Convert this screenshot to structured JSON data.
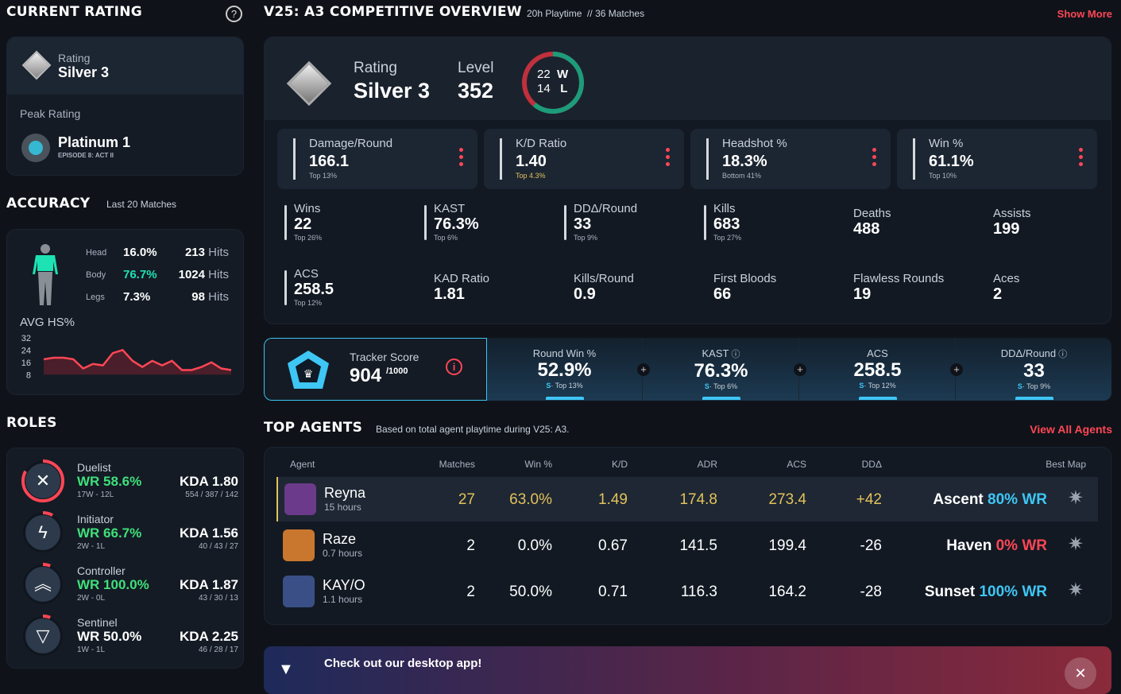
{
  "left": {
    "current_rating_title": "CURRENT RATING",
    "rating_label": "Rating",
    "rating_value": "Silver 3",
    "peak_label": "Peak Rating",
    "peak_value": "Platinum 1",
    "peak_episode": "EPISODE 8: ACT II",
    "accuracy_title": "ACCURACY",
    "accuracy_sub": "Last 20 Matches",
    "accuracy": [
      {
        "part": "Head",
        "pct": "16.0%",
        "hits": "213",
        "unit": "Hits"
      },
      {
        "part": "Body",
        "pct": "76.7%",
        "hits": "1024",
        "unit": "Hits"
      },
      {
        "part": "Legs",
        "pct": "7.3%",
        "hits": "98",
        "unit": "Hits"
      }
    ],
    "avg_hs_label": "AVG HS%",
    "roles_title": "ROLES",
    "roles": [
      {
        "name": "Duelist",
        "wr": "WR 58.6%",
        "wl": "17W - 12L",
        "kda": "KDA 1.80",
        "kdas": "554 / 387 / 142",
        "icon": "duelist-icon",
        "share": 0.83,
        "glyph": "✕"
      },
      {
        "name": "Initiator",
        "wr": "WR 66.7%",
        "wl": "2W - 1L",
        "kda": "KDA 1.56",
        "kdas": "40 / 43 / 27",
        "icon": "initiator-icon",
        "share": 0.08,
        "glyph": "ϟ"
      },
      {
        "name": "Controller",
        "wr": "WR 100.0%",
        "wl": "2W - 0L",
        "kda": "KDA 1.87",
        "kdas": "43 / 30 / 13",
        "icon": "controller-icon",
        "share": 0.06,
        "glyph": "︽"
      },
      {
        "name": "Sentinel",
        "wr": "WR 50.0%",
        "wl": "1W - 1L",
        "kda": "KDA 2.25",
        "kdas": "46 / 28 / 17",
        "icon": "sentinel-icon",
        "share": 0.06,
        "glyph": "▽"
      }
    ]
  },
  "hs_chart": {
    "y_ticks": [
      "32",
      "24",
      "16",
      "8"
    ],
    "ylim": [
      4,
      34
    ],
    "values": [
      18,
      19,
      19,
      18,
      12,
      15,
      14,
      22,
      24,
      17,
      13,
      17,
      14,
      17,
      11,
      11,
      13,
      16,
      12,
      11
    ]
  },
  "overview": {
    "title": "V25: A3 COMPETITIVE OVERVIEW",
    "playtime": "20h Playtime",
    "separator": "//",
    "matches": "36 Matches",
    "show_more": "Show More",
    "rating_label": "Rating",
    "rating_value": "Silver 3",
    "level_label": "Level",
    "level_value": "352",
    "wins": "22",
    "losses": "14",
    "w_label": "W",
    "l_label": "L",
    "tiles": [
      {
        "label": "Damage/Round",
        "value": "166.1",
        "sub": "Top 13%"
      },
      {
        "label": "K/D Ratio",
        "value": "1.40",
        "sub": "Top 4.3%"
      },
      {
        "label": "Headshot %",
        "value": "18.3%",
        "sub": "Bottom 41%"
      },
      {
        "label": "Win %",
        "value": "61.1%",
        "sub": "Top 10%"
      }
    ],
    "stats": [
      {
        "label": "Wins",
        "value": "22",
        "sub": "Top 26%"
      },
      {
        "label": "KAST",
        "value": "76.3%",
        "sub": "Top 6%"
      },
      {
        "label": "DDΔ/Round",
        "value": "33",
        "sub": "Top 9%"
      },
      {
        "label": "Kills",
        "value": "683",
        "sub": "Top 27%"
      },
      {
        "label": "Deaths",
        "value": "488"
      },
      {
        "label": "Assists",
        "value": "199"
      },
      {
        "label": "ACS",
        "value": "258.5",
        "sub": "Top 12%"
      },
      {
        "label": "KAD Ratio",
        "value": "1.81"
      },
      {
        "label": "Kills/Round",
        "value": "0.9"
      },
      {
        "label": "First Bloods",
        "value": "66"
      },
      {
        "label": "Flawless Rounds",
        "value": "19"
      },
      {
        "label": "Aces",
        "value": "2"
      }
    ]
  },
  "tracker": {
    "label": "Tracker Score",
    "score": "904",
    "max": "/1000",
    "items": [
      {
        "label": "Round Win %",
        "value": "52.9%",
        "grade": "S",
        "sub": "· Top 13%"
      },
      {
        "label": "KAST",
        "value": "76.3%",
        "grade": "S",
        "sub": "· Top 6%",
        "info": true
      },
      {
        "label": "ACS",
        "value": "258.5",
        "grade": "S",
        "sub": "· Top 12%"
      },
      {
        "label": "DDΔ/Round",
        "value": "33",
        "grade": "S",
        "sub": "· Top 9%",
        "info": true
      }
    ]
  },
  "agents": {
    "title": "TOP AGENTS",
    "sub": "Based on total agent playtime during V25: A3.",
    "view_all": "View All Agents",
    "columns": [
      "Agent",
      "Matches",
      "Win %",
      "K/D",
      "ADR",
      "ACS",
      "DDΔ",
      "Best Map"
    ],
    "rows": [
      {
        "name": "Reyna",
        "hours": "15 hours",
        "matches": "27",
        "win": "63.0%",
        "kd": "1.49",
        "adr": "174.8",
        "acs": "273.4",
        "dda": "+42",
        "map": "Ascent",
        "map_wr": "80% WR",
        "wr_color": "#3ec6f5",
        "avatar": "#6b3a8a"
      },
      {
        "name": "Raze",
        "hours": "0.7 hours",
        "matches": "2",
        "win": "0.0%",
        "kd": "0.67",
        "adr": "141.5",
        "acs": "199.4",
        "dda": "-26",
        "map": "Haven",
        "map_wr": "0% WR",
        "wr_color": "#ff4655",
        "avatar": "#c9772e"
      },
      {
        "name": "KAY/O",
        "hours": "1.1 hours",
        "matches": "2",
        "win": "50.0%",
        "kd": "0.71",
        "adr": "116.3",
        "acs": "164.2",
        "dda": "-28",
        "map": "Sunset",
        "map_wr": "100% WR",
        "wr_color": "#3ec6f5",
        "avatar": "#3a4f86"
      }
    ]
  },
  "banner": {
    "title": "Check out our desktop app!",
    "close": "✕"
  },
  "colors": {
    "accent": "#ff4655",
    "green": "#3fe07a",
    "cyan": "#3ec6f5",
    "gold": "#e3c25b",
    "teal": "#1de2b3"
  }
}
